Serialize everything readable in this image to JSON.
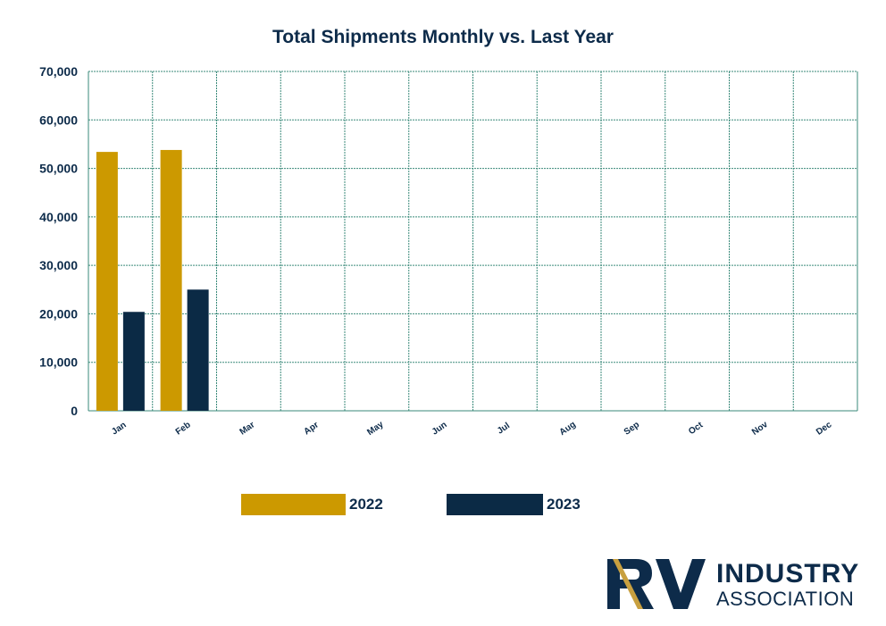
{
  "chart_data": {
    "type": "bar",
    "title": "Total Shipments Monthly vs. Last Year",
    "categories": [
      "Jan",
      "Feb",
      "Mar",
      "Apr",
      "May",
      "Jun",
      "Jul",
      "Aug",
      "Sep",
      "Oct",
      "Nov",
      "Dec"
    ],
    "series": [
      {
        "name": "2022",
        "color": "#cc9900",
        "values": [
          53400,
          53800,
          null,
          null,
          null,
          null,
          null,
          null,
          null,
          null,
          null,
          null
        ]
      },
      {
        "name": "2023",
        "color": "#0b2a45",
        "values": [
          20400,
          25000,
          null,
          null,
          null,
          null,
          null,
          null,
          null,
          null,
          null,
          null
        ]
      }
    ],
    "ylim": [
      0,
      70000
    ],
    "yticks": [
      "0",
      "10,000",
      "20,000",
      "30,000",
      "40,000",
      "50,000",
      "60,000",
      "70,000"
    ],
    "ytick_values": [
      0,
      10000,
      20000,
      30000,
      40000,
      50000,
      60000,
      70000
    ],
    "grid": true,
    "grid_color": "#3a8a7a",
    "legend_position": "bottom"
  },
  "logo": {
    "mark": "RV",
    "line1": "INDUSTRY",
    "line2": "ASSOCIATION"
  }
}
